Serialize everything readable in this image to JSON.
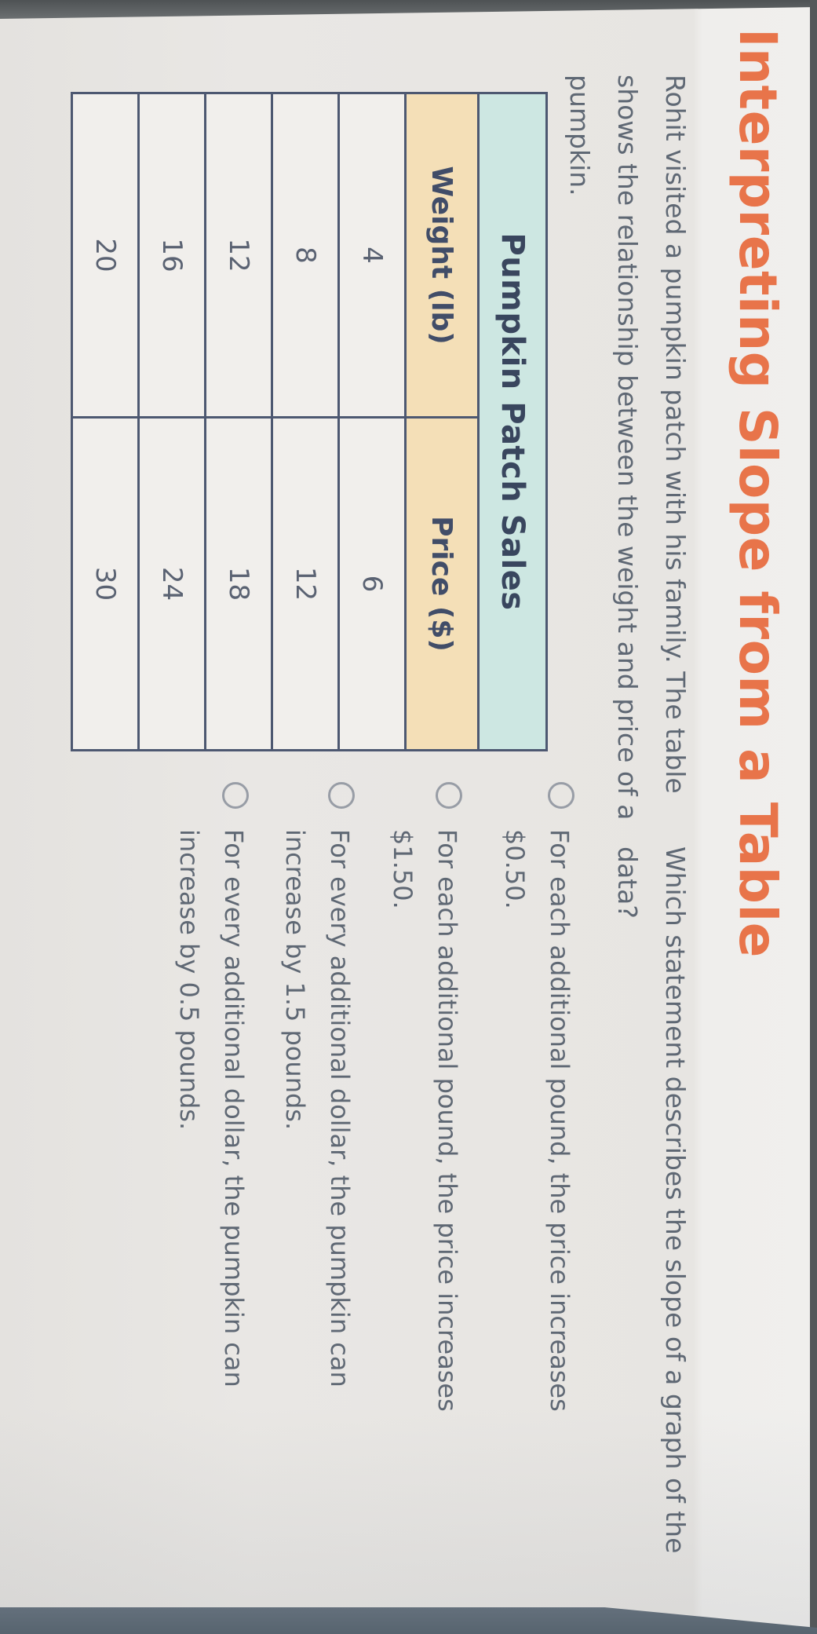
{
  "page": {
    "title": "Interpreting Slope from a Table"
  },
  "problem": {
    "lines": [
      "Rohit visited a pumpkin patch with his family. The table",
      "shows the relationship between the weight and price of a",
      "pumpkin."
    ]
  },
  "question": {
    "lines": [
      "Which statement describes the slope of a graph of the",
      "data?"
    ]
  },
  "table": {
    "title": "Pumpkin Patch Sales",
    "columns": [
      "Weight (lb)",
      "Price ($)"
    ],
    "rows": [
      [
        "4",
        "6"
      ],
      [
        "8",
        "12"
      ],
      [
        "12",
        "18"
      ],
      [
        "16",
        "24"
      ],
      [
        "20",
        "30"
      ]
    ]
  },
  "options": [
    {
      "line1": "For each additional pound, the price increases",
      "line2": "$0.50."
    },
    {
      "line1": "For each additional pound, the price increases",
      "line2": "$1.50."
    },
    {
      "line1": "For every additional dollar, the pumpkin can",
      "line2": "increase by 1.5 pounds."
    },
    {
      "line1": "For every additional dollar, the pumpkin can",
      "line2": "increase by 0.5 pounds."
    }
  ],
  "colors": {
    "accent_orange": "#e8744a",
    "table_title_bg": "#cde7e2",
    "table_header_bg": "#f4dfb7",
    "table_border": "#4d5871",
    "heading_text": "#39465e",
    "body_text": "#5f6874",
    "page_bg": "#e9e7e4",
    "edge_top_band": "#55585b",
    "edge_bottom_band": "#5c6a76"
  }
}
